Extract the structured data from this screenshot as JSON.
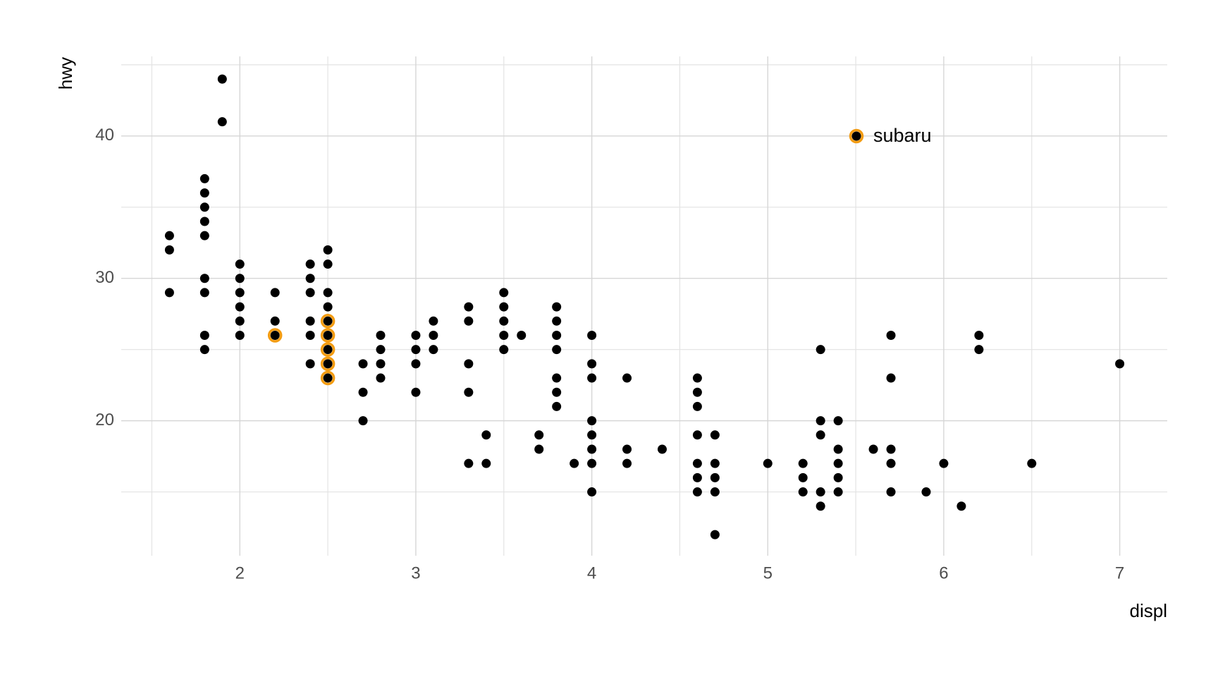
{
  "chart_data": {
    "type": "scatter",
    "x_label": "displ",
    "y_label": "hwy",
    "xlim": [
      1.326,
      7.27
    ],
    "ylim": [
      10.52,
      45.59
    ],
    "xticks": [
      2,
      3,
      4,
      5,
      6,
      7
    ],
    "yticks": [
      20,
      30,
      40
    ],
    "xminorticks": [
      1.5,
      2.5,
      3.5,
      4.5,
      5.5,
      6.5
    ],
    "yminorticks": [
      15,
      25,
      35,
      45
    ],
    "grid": true,
    "series": [
      {
        "color": "#000000",
        "x": [
          1.6,
          1.6,
          1.6,
          1.8,
          1.8,
          1.8,
          1.8,
          1.8,
          1.8,
          1.8,
          1.8,
          1.8,
          1.9,
          1.9,
          2.0,
          2.0,
          2.0,
          2.0,
          2.0,
          2.0,
          2.2,
          2.2,
          2.2,
          2.4,
          2.4,
          2.4,
          2.4,
          2.4,
          2.4,
          2.5,
          2.5,
          2.5,
          2.5,
          2.5,
          2.5,
          2.5,
          2.5,
          2.5,
          2.7,
          2.7,
          2.7,
          2.8,
          2.8,
          2.8,
          2.8,
          3.0,
          3.0,
          3.0,
          3.0,
          3.1,
          3.1,
          3.1,
          3.3,
          3.3,
          3.3,
          3.3,
          3.3,
          3.4,
          3.4,
          3.5,
          3.5,
          3.5,
          3.5,
          3.5,
          3.6,
          3.7,
          3.7,
          3.8,
          3.8,
          3.8,
          3.8,
          3.8,
          3.8,
          3.8,
          3.9,
          4.0,
          4.0,
          4.0,
          4.0,
          4.0,
          4.0,
          4.0,
          4.0,
          4.2,
          4.2,
          4.2,
          4.4,
          4.6,
          4.6,
          4.6,
          4.6,
          4.6,
          4.6,
          4.6,
          4.7,
          4.7,
          4.7,
          4.7,
          4.7,
          5.0,
          5.2,
          5.2,
          5.2,
          5.3,
          5.3,
          5.3,
          5.3,
          5.3,
          5.4,
          5.4,
          5.4,
          5.4,
          5.4,
          5.6,
          5.7,
          5.7,
          5.7,
          5.7,
          5.7,
          5.9,
          6.0,
          6.1,
          6.2,
          6.2,
          6.5,
          7.0
        ],
        "y": [
          33,
          32,
          29,
          37,
          36,
          35,
          34,
          33,
          30,
          29,
          26,
          25,
          44,
          41,
          31,
          30,
          29,
          28,
          27,
          26,
          29,
          27,
          26,
          31,
          30,
          29,
          27,
          26,
          24,
          32,
          31,
          29,
          28,
          27,
          26,
          25,
          24,
          23,
          24,
          22,
          20,
          26,
          25,
          24,
          23,
          26,
          25,
          24,
          22,
          27,
          26,
          25,
          28,
          27,
          24,
          22,
          17,
          19,
          17,
          29,
          28,
          27,
          26,
          25,
          26,
          19,
          18,
          28,
          27,
          26,
          25,
          23,
          22,
          21,
          17,
          26,
          24,
          23,
          20,
          19,
          18,
          17,
          15,
          23,
          18,
          17,
          18,
          23,
          22,
          21,
          19,
          17,
          16,
          15,
          19,
          17,
          16,
          15,
          12,
          17,
          17,
          16,
          15,
          25,
          20,
          19,
          15,
          14,
          20,
          18,
          17,
          16,
          15,
          18,
          26,
          23,
          18,
          17,
          15,
          15,
          17,
          14,
          26,
          25,
          17,
          24
        ]
      },
      {
        "name": "subaru",
        "color": "#f39c12",
        "x": [
          2.2,
          2.5,
          2.5,
          2.5,
          2.5,
          2.5
        ],
        "y": [
          26,
          27,
          26,
          25,
          24,
          23
        ]
      }
    ]
  }
}
